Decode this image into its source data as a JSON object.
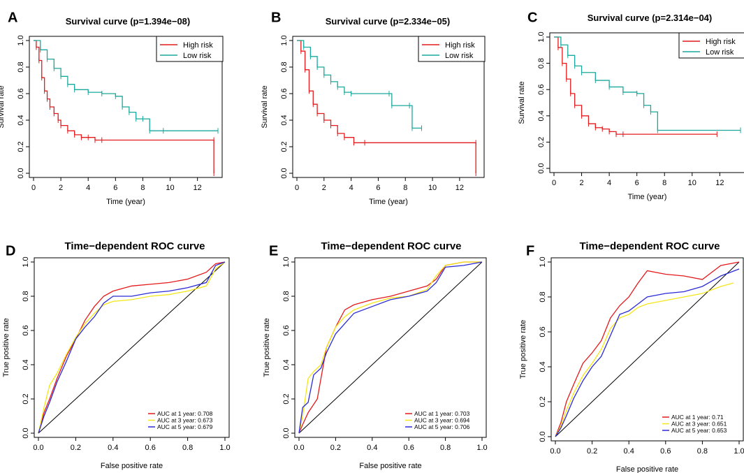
{
  "panels": [
    {
      "letter": "A",
      "title": "Survival curve (p=1.394e−08)"
    },
    {
      "letter": "B",
      "title": "Survival curve (p=2.334e−05)"
    },
    {
      "letter": "C",
      "title": "Survival curve (p=2.314e−04)"
    },
    {
      "letter": "D",
      "title": "Time−dependent ROC curve"
    },
    {
      "letter": "E",
      "title": "Time−dependent ROC curve"
    },
    {
      "letter": "F",
      "title": "Time−dependent ROC curve"
    }
  ],
  "colors": {
    "high": "#E41A1C",
    "low": "#1AA89C",
    "y1": "#E41A1C",
    "y3": "#F5E61A",
    "y5": "#2B2BD6",
    "diag": "#000000"
  },
  "chart_data": [
    {
      "type": "line",
      "id": "A",
      "title": "Survival curve (p=1.394e−08)",
      "xlabel": "Time (year)",
      "ylabel": "Survival rate",
      "xlim": [
        0,
        13.5
      ],
      "ylim": [
        0,
        1
      ],
      "xticks": [
        "0",
        "2",
        "4",
        "6",
        "8",
        "10",
        "12"
      ],
      "yticks": [
        "0.0",
        "0.2",
        "0.4",
        "0.6",
        "0.8",
        "1.0"
      ],
      "legend": [
        "High risk",
        "Low risk"
      ],
      "series": [
        {
          "name": "High risk",
          "x": [
            0,
            0.2,
            0.4,
            0.6,
            0.8,
            1.0,
            1.2,
            1.5,
            1.8,
            2.0,
            2.5,
            3.0,
            3.5,
            4.0,
            4.5,
            5.0,
            13.2,
            13.2
          ],
          "y": [
            1.0,
            0.95,
            0.85,
            0.72,
            0.62,
            0.56,
            0.5,
            0.45,
            0.4,
            0.36,
            0.32,
            0.29,
            0.27,
            0.27,
            0.25,
            0.25,
            0.25,
            0.0
          ]
        },
        {
          "name": "Low risk",
          "x": [
            0,
            0.5,
            1.0,
            1.5,
            2.0,
            2.5,
            3.0,
            4.0,
            5.0,
            6.0,
            6.5,
            7.0,
            7.5,
            8.0,
            8.5,
            9.5,
            13.5
          ],
          "y": [
            1.0,
            0.93,
            0.86,
            0.79,
            0.73,
            0.67,
            0.63,
            0.61,
            0.6,
            0.58,
            0.5,
            0.46,
            0.41,
            0.41,
            0.32,
            0.32,
            0.32
          ]
        }
      ]
    },
    {
      "type": "line",
      "id": "B",
      "title": "Survival curve (p=2.334e−05)",
      "xlabel": "Time (year)",
      "ylabel": "Survival rate",
      "xlim": [
        0,
        13.5
      ],
      "ylim": [
        0,
        1
      ],
      "xticks": [
        "0",
        "2",
        "4",
        "6",
        "8",
        "10",
        "12"
      ],
      "yticks": [
        "0.0",
        "0.2",
        "0.4",
        "0.6",
        "0.8",
        "1.0"
      ],
      "legend": [
        "High risk",
        "Low risk"
      ],
      "series": [
        {
          "name": "High risk",
          "x": [
            0,
            0.3,
            0.6,
            0.9,
            1.2,
            1.5,
            2.0,
            2.5,
            3.0,
            3.5,
            4.2,
            5.0,
            13.2,
            13.2
          ],
          "y": [
            1.0,
            0.92,
            0.78,
            0.62,
            0.52,
            0.45,
            0.4,
            0.36,
            0.3,
            0.27,
            0.23,
            0.23,
            0.23,
            0.0
          ]
        },
        {
          "name": "Low risk",
          "x": [
            0,
            0.5,
            1.0,
            1.5,
            2.0,
            2.5,
            3.0,
            3.5,
            4.0,
            6.8,
            7.0,
            8.3,
            8.5,
            9.2
          ],
          "y": [
            1.0,
            0.95,
            0.88,
            0.8,
            0.74,
            0.69,
            0.65,
            0.61,
            0.6,
            0.6,
            0.51,
            0.51,
            0.34,
            0.34
          ]
        }
      ]
    },
    {
      "type": "line",
      "id": "C",
      "title": "Survival curve (p=2.314e−04)",
      "xlabel": "Time (year)",
      "ylabel": "Survival rate",
      "xlim": [
        0,
        13.5
      ],
      "ylim": [
        0,
        1
      ],
      "xticks": [
        "0",
        "2",
        "4",
        "6",
        "8",
        "10",
        "12"
      ],
      "yticks": [
        "0.0",
        "0.2",
        "0.4",
        "0.6",
        "0.8",
        "1.0"
      ],
      "legend": [
        "High risk",
        "Low risk"
      ],
      "series": [
        {
          "name": "High risk",
          "x": [
            0,
            0.3,
            0.6,
            0.9,
            1.2,
            1.5,
            2.0,
            2.5,
            3.0,
            3.5,
            4.0,
            4.5,
            5.0,
            11.8
          ],
          "y": [
            1.0,
            0.92,
            0.8,
            0.68,
            0.57,
            0.48,
            0.4,
            0.34,
            0.31,
            0.3,
            0.28,
            0.26,
            0.26,
            0.26
          ]
        },
        {
          "name": "Low risk",
          "x": [
            0,
            0.5,
            1.0,
            1.5,
            2.0,
            3.0,
            4.0,
            5.0,
            6.0,
            6.5,
            7.0,
            7.5,
            13.5
          ],
          "y": [
            1.0,
            0.94,
            0.86,
            0.78,
            0.73,
            0.67,
            0.62,
            0.58,
            0.57,
            0.48,
            0.43,
            0.29,
            0.29
          ]
        }
      ]
    },
    {
      "type": "line",
      "id": "D",
      "title": "Time−dependent ROC curve",
      "xlabel": "False positive rate",
      "ylabel": "True positive rate",
      "xlim": [
        0,
        1
      ],
      "ylim": [
        0,
        1
      ],
      "xticks": [
        "0.0",
        "0.2",
        "0.4",
        "0.6",
        "0.8",
        "1.0"
      ],
      "yticks": [
        "0.0",
        "0.2",
        "0.4",
        "0.6",
        "0.8",
        "1.0"
      ],
      "legend": [
        "AUC at 1 year: 0.708",
        "AUC at 3 year: 0.673",
        "AUC at 5 year: 0.679"
      ],
      "series": [
        {
          "name": "1 year",
          "x": [
            0,
            0.03,
            0.06,
            0.1,
            0.15,
            0.2,
            0.25,
            0.3,
            0.35,
            0.4,
            0.5,
            0.6,
            0.7,
            0.8,
            0.9,
            0.95,
            1.0
          ],
          "y": [
            0,
            0.12,
            0.2,
            0.32,
            0.45,
            0.55,
            0.66,
            0.74,
            0.8,
            0.83,
            0.86,
            0.87,
            0.88,
            0.9,
            0.94,
            0.99,
            1.0
          ]
        },
        {
          "name": "3 year",
          "x": [
            0,
            0.03,
            0.06,
            0.1,
            0.15,
            0.2,
            0.25,
            0.3,
            0.35,
            0.4,
            0.5,
            0.6,
            0.7,
            0.8,
            0.9,
            0.95,
            1.0
          ],
          "y": [
            0,
            0.15,
            0.28,
            0.35,
            0.46,
            0.56,
            0.64,
            0.7,
            0.75,
            0.77,
            0.78,
            0.8,
            0.81,
            0.83,
            0.86,
            0.96,
            1.0
          ]
        },
        {
          "name": "5 year",
          "x": [
            0,
            0.03,
            0.06,
            0.1,
            0.15,
            0.2,
            0.25,
            0.3,
            0.35,
            0.4,
            0.5,
            0.6,
            0.7,
            0.8,
            0.9,
            0.95,
            1.0
          ],
          "y": [
            0,
            0.1,
            0.18,
            0.3,
            0.42,
            0.55,
            0.62,
            0.68,
            0.76,
            0.8,
            0.8,
            0.82,
            0.83,
            0.85,
            0.88,
            0.98,
            1.0
          ]
        }
      ]
    },
    {
      "type": "line",
      "id": "E",
      "title": "Time−dependent ROC curve",
      "xlabel": "False positive rate",
      "ylabel": "True positive rate",
      "xlim": [
        0,
        1
      ],
      "ylim": [
        0,
        1
      ],
      "xticks": [
        "0.0",
        "0.2",
        "0.4",
        "0.6",
        "0.8",
        "1.0"
      ],
      "yticks": [
        "0.0",
        "0.2",
        "0.4",
        "0.6",
        "0.8",
        "1.0"
      ],
      "legend": [
        "AUC at 1 year: 0.703",
        "AUC at 3 year: 0.694",
        "AUC at 5 year: 0.706"
      ],
      "series": [
        {
          "name": "1 year",
          "x": [
            0,
            0.02,
            0.05,
            0.1,
            0.13,
            0.15,
            0.2,
            0.25,
            0.3,
            0.4,
            0.5,
            0.6,
            0.7,
            0.75,
            0.8,
            0.9,
            1.0
          ],
          "y": [
            0,
            0.05,
            0.12,
            0.2,
            0.38,
            0.5,
            0.62,
            0.72,
            0.75,
            0.78,
            0.8,
            0.83,
            0.86,
            0.9,
            0.98,
            1.0,
            1.0
          ]
        },
        {
          "name": "3 year",
          "x": [
            0,
            0.02,
            0.05,
            0.08,
            0.12,
            0.15,
            0.2,
            0.25,
            0.3,
            0.4,
            0.5,
            0.6,
            0.7,
            0.75,
            0.8,
            0.9,
            1.0
          ],
          "y": [
            0,
            0.1,
            0.32,
            0.36,
            0.4,
            0.5,
            0.62,
            0.68,
            0.72,
            0.76,
            0.79,
            0.8,
            0.84,
            0.92,
            0.98,
            1.0,
            1.0
          ]
        },
        {
          "name": "5 year",
          "x": [
            0,
            0.02,
            0.05,
            0.08,
            0.12,
            0.15,
            0.2,
            0.25,
            0.3,
            0.4,
            0.5,
            0.6,
            0.7,
            0.75,
            0.8,
            0.9,
            1.0
          ],
          "y": [
            0,
            0.15,
            0.18,
            0.34,
            0.38,
            0.47,
            0.58,
            0.64,
            0.7,
            0.74,
            0.78,
            0.8,
            0.83,
            0.88,
            0.97,
            0.98,
            1.0
          ]
        }
      ]
    },
    {
      "type": "line",
      "id": "F",
      "title": "Time−dependent ROC curve",
      "xlabel": "False positive rate",
      "ylabel": "True positive rate",
      "xlim": [
        0,
        1
      ],
      "ylim": [
        0,
        1
      ],
      "xticks": [
        "0.0",
        "0.2",
        "0.4",
        "0.6",
        "0.8",
        "1.0"
      ],
      "yticks": [
        "0.0",
        "0.2",
        "0.4",
        "0.6",
        "0.8",
        "1.0"
      ],
      "legend": [
        "AUC at 1 year: 0.71",
        "AUC at 3 year: 0.651",
        "AUC at 5 year: 0.653"
      ],
      "series": [
        {
          "name": "1 year",
          "x": [
            0,
            0.03,
            0.06,
            0.1,
            0.15,
            0.2,
            0.25,
            0.3,
            0.35,
            0.4,
            0.45,
            0.5,
            0.6,
            0.7,
            0.8,
            0.9,
            1.0
          ],
          "y": [
            0,
            0.08,
            0.2,
            0.3,
            0.42,
            0.48,
            0.55,
            0.68,
            0.75,
            0.8,
            0.88,
            0.95,
            0.93,
            0.92,
            0.9,
            0.98,
            1.0
          ]
        },
        {
          "name": "3 year",
          "x": [
            0,
            0.03,
            0.06,
            0.1,
            0.15,
            0.2,
            0.25,
            0.3,
            0.35,
            0.4,
            0.45,
            0.5,
            0.6,
            0.7,
            0.8,
            0.9,
            0.97
          ],
          "y": [
            0,
            0.06,
            0.15,
            0.25,
            0.35,
            0.42,
            0.5,
            0.62,
            0.68,
            0.7,
            0.74,
            0.76,
            0.78,
            0.8,
            0.82,
            0.86,
            0.88
          ]
        },
        {
          "name": "5 year",
          "x": [
            0,
            0.03,
            0.06,
            0.1,
            0.15,
            0.2,
            0.25,
            0.3,
            0.35,
            0.4,
            0.45,
            0.5,
            0.6,
            0.7,
            0.8,
            0.9,
            1.0
          ],
          "y": [
            0,
            0.05,
            0.12,
            0.22,
            0.32,
            0.4,
            0.46,
            0.58,
            0.7,
            0.72,
            0.76,
            0.8,
            0.82,
            0.83,
            0.86,
            0.92,
            0.96
          ]
        }
      ]
    }
  ]
}
